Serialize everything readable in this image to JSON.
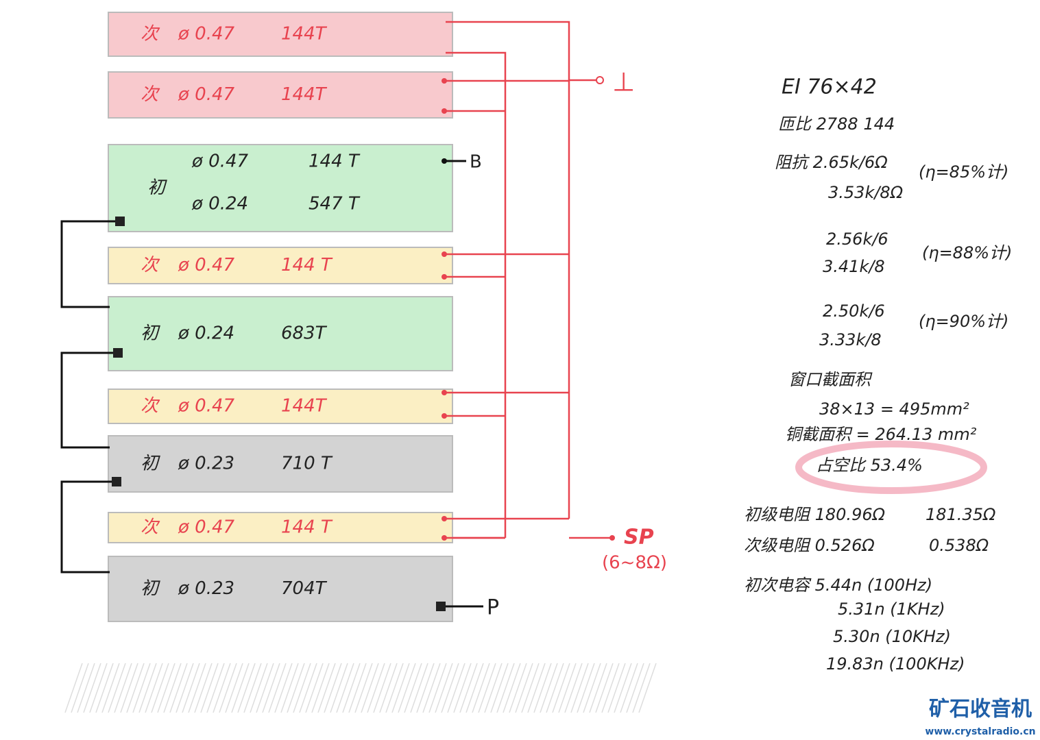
{
  "windings": [
    {
      "kind": "次",
      "rows": [
        {
          "wire": "ø 0.47",
          "turns": "144T"
        }
      ]
    },
    {
      "kind": "次",
      "rows": [
        {
          "wire": "ø 0.47",
          "turns": "144T"
        }
      ]
    },
    {
      "kind": "初",
      "rows": [
        {
          "wire": "ø 0.47",
          "turns": "144 T"
        },
        {
          "wire": "ø 0.24",
          "turns": "547 T"
        }
      ]
    },
    {
      "kind": "次",
      "rows": [
        {
          "wire": "ø 0.47",
          "turns": "144 T"
        }
      ]
    },
    {
      "kind": "初",
      "rows": [
        {
          "wire": "ø 0.24",
          "turns": "683T"
        }
      ]
    },
    {
      "kind": "次",
      "rows": [
        {
          "wire": "ø 0.47",
          "turns": "144T"
        }
      ]
    },
    {
      "kind": "初",
      "rows": [
        {
          "wire": "ø 0.23",
          "turns": "710 T"
        }
      ]
    },
    {
      "kind": "次",
      "rows": [
        {
          "wire": "ø 0.47",
          "turns": "144 T"
        }
      ]
    },
    {
      "kind": "初",
      "rows": [
        {
          "wire": "ø 0.23",
          "turns": "704T"
        }
      ]
    }
  ],
  "terminals": {
    "ground": "⊥",
    "b": "B",
    "sp": "SP",
    "sp_note": "(6~8Ω)",
    "p": "P"
  },
  "notes": [
    "EI 76×42",
    "匝比 2788 144",
    "阻抗 2.65k/6Ω",
    "3.53k/8Ω",
    "(η=85%计)",
    "2.56k/6",
    "3.41k/8",
    "(η=88%计)",
    "2.50k/6",
    "3.33k/8",
    "(η=90%计)",
    "窗口截面积",
    "38×13 = 495mm²",
    "铜截面积 = 264.13 mm²",
    "占空比 53.4%",
    "初级电阻 180.96Ω",
    "181.35Ω",
    "次级电阻 0.526Ω",
    "0.538Ω",
    "初次电容 5.44n (100Hz)",
    "5.31n (1KHz)",
    "5.30n (10KHz)",
    "19.83n (100KHz)"
  ],
  "watermark": {
    "name": "矿石收音机",
    "url": "www.crystalradio.cn"
  }
}
